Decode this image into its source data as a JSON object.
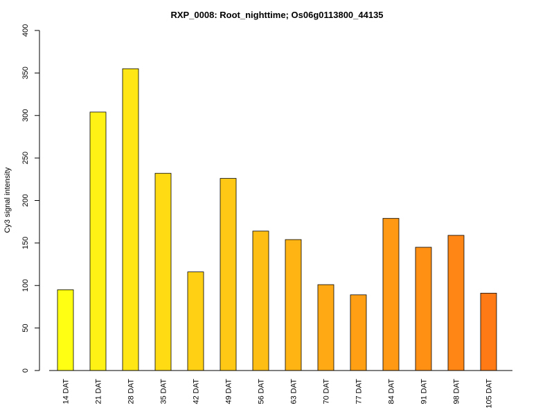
{
  "chart_data": {
    "type": "bar",
    "title": "RXP_0008: Root_nighttime; Os06g0113800_44135",
    "xlabel": "",
    "ylabel": "Cy3 signal intensity",
    "ylim": [
      0,
      400
    ],
    "yticks": [
      0,
      50,
      100,
      150,
      200,
      250,
      300,
      350,
      400
    ],
    "grid": false,
    "categories": [
      "14 DAT",
      "21 DAT",
      "28 DAT",
      "35 DAT",
      "42 DAT",
      "49 DAT",
      "56 DAT",
      "63 DAT",
      "70 DAT",
      "77 DAT",
      "84 DAT",
      "91 DAT",
      "98 DAT",
      "105 DAT"
    ],
    "values": [
      95,
      304,
      355,
      232,
      116,
      226,
      164,
      154,
      101,
      89,
      179,
      145,
      159,
      91
    ],
    "colors": [
      "#FFFF14",
      "#FFF214",
      "#FFE614",
      "#FFDB14",
      "#FFD014",
      "#FFC814",
      "#FFBE14",
      "#FFB414",
      "#FFAA14",
      "#FFA014",
      "#FF9914",
      "#FF9014",
      "#FF8514",
      "#FF7A14"
    ]
  }
}
